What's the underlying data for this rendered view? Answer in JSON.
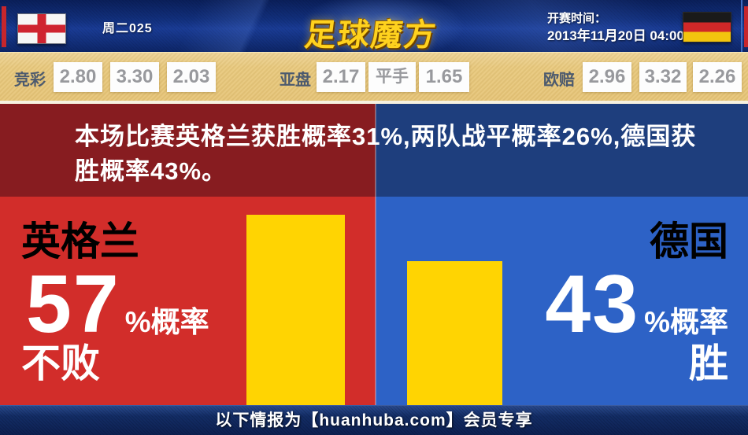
{
  "header": {
    "match_code": "周二025",
    "logo_text": "足球魔方",
    "kickoff_label": "开赛时间：",
    "kickoff_time": "2013年11月20日 04:00",
    "home_flag": "england-flag",
    "away_flag": "germany-flag"
  },
  "odds_bar": {
    "groups": [
      {
        "label": "竞彩",
        "values": [
          "2.80",
          "3.30",
          "2.03"
        ]
      },
      {
        "label": "亚盘",
        "values": [
          "2.17",
          "平手",
          "1.65"
        ]
      },
      {
        "label": "欧赔",
        "values": [
          "2.96",
          "3.32",
          "2.26"
        ]
      }
    ]
  },
  "summary": {
    "line1": "本场比赛英格兰获胜概率31%,两队战平概率26%,德国获",
    "line2": "胜概率43%。",
    "full_text": "本场比赛英格兰获胜概率31%,两队战平概率26%,德国获胜概率43%。"
  },
  "panels": {
    "left": {
      "team": "英格兰",
      "percent": "57",
      "percent_label": "%概率",
      "outcome": "不败"
    },
    "right": {
      "team": "德国",
      "percent": "43",
      "percent_label": "%概率",
      "outcome": "胜"
    }
  },
  "chart_data": {
    "type": "bar",
    "categories": [
      "英格兰不败概率",
      "德国获胜概率"
    ],
    "values": [
      57,
      43
    ],
    "unit": "%",
    "bar_color": "#ffd402",
    "left_panel_color": "#d22d2a",
    "right_panel_color": "#2d62c6"
  },
  "footer": {
    "text": "以下情报为【huanhuba.com】会员专享"
  },
  "colors": {
    "panel_red": "#d22d2a",
    "panel_red_dark": "#871c20",
    "panel_blue": "#2d62c6",
    "panel_blue_dark": "#1e3e7d",
    "bar_yellow": "#ffd402",
    "odds_gold": "#e8c87c",
    "topbar_navy": "#12307e"
  }
}
